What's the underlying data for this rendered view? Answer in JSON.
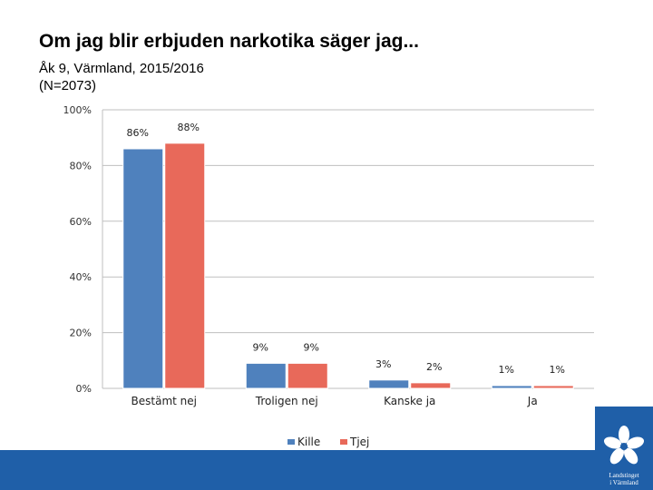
{
  "header": {
    "title": "Om jag blir erbjuden narkotika säger jag...",
    "subtitle_line1": "Åk 9, Värmland, 2015/2016",
    "subtitle_line2": "(N=2073)"
  },
  "logo": {
    "line1": "Landstinget",
    "line2": "i Värmland"
  },
  "colors": {
    "kille": "#4f81bd",
    "tjej": "#e8695a",
    "brand": "#1f5fa8"
  },
  "chart_data": {
    "type": "bar",
    "title": "Om jag blir erbjuden narkotika säger jag...",
    "categories": [
      "Bestämt nej",
      "Troligen nej",
      "Kanske ja",
      "Ja"
    ],
    "series": [
      {
        "name": "Kille",
        "values": [
          86,
          9,
          3,
          1
        ],
        "labels": [
          "86%",
          "9%",
          "3%",
          "1%"
        ]
      },
      {
        "name": "Tjej",
        "values": [
          88,
          9,
          2,
          1
        ],
        "labels": [
          "88%",
          "9%",
          "2%",
          "1%"
        ]
      }
    ],
    "yticks": [
      0,
      20,
      40,
      60,
      80,
      100
    ],
    "ytick_labels": [
      "0%",
      "20%",
      "40%",
      "60%",
      "80%",
      "100%"
    ],
    "ylim": [
      0,
      100
    ],
    "xlabel": "",
    "ylabel": "",
    "grid": true,
    "legend_position": "bottom"
  }
}
